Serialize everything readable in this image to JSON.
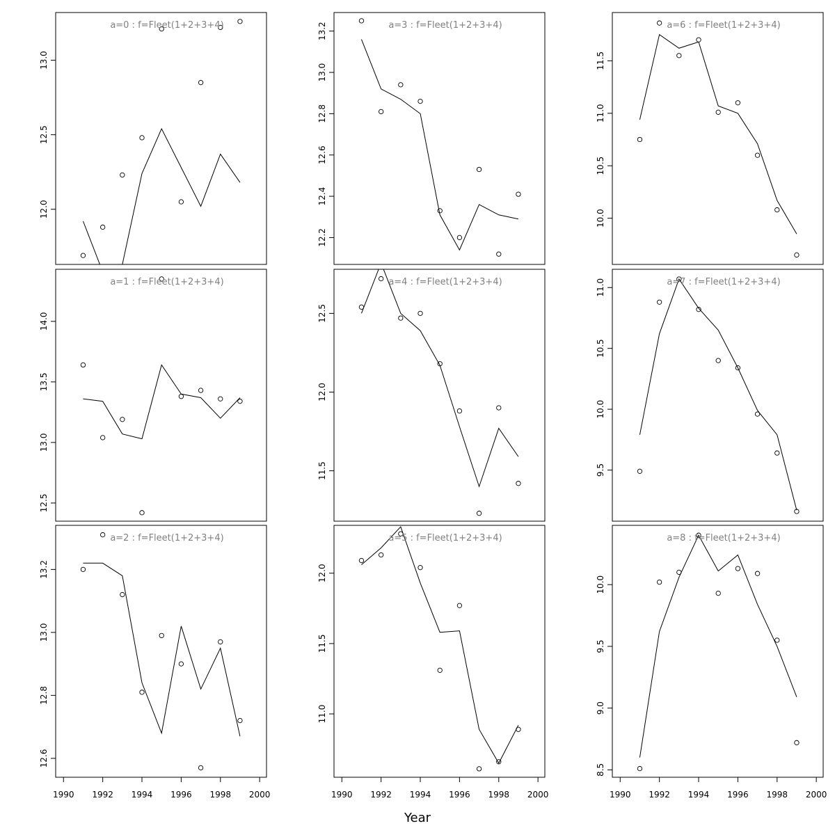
{
  "chart_data": {
    "type": "scatter",
    "xlabel": "Year",
    "xlim": [
      1989.6,
      2000.35
    ],
    "xticks": [
      1990,
      1992,
      1994,
      1996,
      1998,
      2000
    ],
    "x": [
      1991,
      1992,
      1993,
      1994,
      1995,
      1996,
      1997,
      1998,
      1999
    ],
    "point_style": "open-circle",
    "line_style": "solid black line",
    "title_color": "#808080",
    "panels": [
      {
        "title": "a=0 : f=Fleet(1+2+3+4)",
        "ylim": [
          11.63,
          13.32
        ],
        "yticks": [
          "12.0",
          "12.5",
          "13.0"
        ],
        "points": [
          11.69,
          11.88,
          12.23,
          12.48,
          13.21,
          12.05,
          12.85,
          13.22,
          13.26
        ],
        "line": [
          11.92,
          11.58,
          11.63,
          12.24,
          12.54,
          12.28,
          12.02,
          12.37,
          12.18
        ]
      },
      {
        "title": "a=3 : f=Fleet(1+2+3+4)",
        "ylim": [
          12.07,
          13.29
        ],
        "yticks": [
          "12.2",
          "12.4",
          "12.6",
          "12.8",
          "13.0",
          "13.2"
        ],
        "points": [
          13.25,
          12.81,
          12.94,
          12.86,
          12.33,
          12.2,
          12.53,
          12.12,
          12.41
        ],
        "line": [
          13.16,
          12.92,
          12.87,
          12.8,
          12.31,
          12.14,
          12.36,
          12.31,
          12.29
        ]
      },
      {
        "title": "a=6 : f=Fleet(1+2+3+4)",
        "ylim": [
          9.56,
          11.96
        ],
        "yticks": [
          "10.0",
          "10.5",
          "11.0",
          "11.5"
        ],
        "points": [
          10.75,
          11.86,
          11.55,
          11.7,
          11.01,
          11.1,
          10.6,
          10.08,
          9.65
        ],
        "line": [
          10.94,
          11.75,
          11.62,
          11.68,
          11.07,
          11.0,
          10.71,
          10.17,
          9.85
        ]
      },
      {
        "title": "a=1 : f=Fleet(1+2+3+4)",
        "ylim": [
          12.35,
          14.43
        ],
        "yticks": [
          "12.5",
          "13.0",
          "13.5",
          "14.0"
        ],
        "points": [
          13.64,
          13.04,
          13.19,
          12.42,
          14.35,
          13.38,
          13.43,
          13.36,
          13.34
        ],
        "line": [
          13.36,
          13.34,
          13.07,
          13.03,
          13.64,
          13.4,
          13.37,
          13.2,
          13.37
        ]
      },
      {
        "title": "a=4 : f=Fleet(1+2+3+4)",
        "ylim": [
          11.18,
          12.78
        ],
        "yticks": [
          "11.5",
          "12.0",
          "12.5"
        ],
        "points": [
          12.54,
          12.72,
          12.47,
          12.5,
          12.18,
          11.88,
          11.23,
          11.9,
          11.42
        ],
        "line": [
          12.5,
          12.82,
          12.5,
          12.39,
          12.17,
          11.78,
          11.4,
          11.77,
          11.59
        ]
      },
      {
        "title": "a=7 : f=Fleet(1+2+3+4)",
        "ylim": [
          9.08,
          11.15
        ],
        "yticks": [
          "9.5",
          "10.0",
          "10.5",
          "11.0"
        ],
        "points": [
          9.49,
          10.88,
          11.07,
          10.82,
          10.4,
          10.34,
          9.96,
          9.64,
          9.16
        ],
        "line": [
          9.79,
          10.62,
          11.07,
          10.83,
          10.65,
          10.34,
          9.99,
          9.79,
          9.17
        ]
      },
      {
        "title": "a=2 : f=Fleet(1+2+3+4)",
        "ylim": [
          12.54,
          13.34
        ],
        "yticks": [
          "12.6",
          "12.8",
          "13.0",
          "13.2"
        ],
        "points": [
          13.2,
          13.31,
          13.12,
          12.81,
          12.99,
          12.9,
          12.57,
          12.97,
          12.72
        ],
        "line": [
          13.22,
          13.22,
          13.18,
          12.84,
          12.68,
          13.02,
          12.82,
          12.95,
          12.67
        ]
      },
      {
        "title": "a=5 : f=Fleet(1+2+3+4)",
        "ylim": [
          10.55,
          12.34
        ],
        "yticks": [
          "11.0",
          "11.5",
          "12.0"
        ],
        "points": [
          12.09,
          12.13,
          12.28,
          12.04,
          11.31,
          11.77,
          10.61,
          10.66,
          10.89
        ],
        "line": [
          12.06,
          12.18,
          12.33,
          11.93,
          11.58,
          11.59,
          10.89,
          10.65,
          10.92
        ]
      },
      {
        "title": "a=8 : f=Fleet(1+2+3+4)",
        "ylim": [
          8.44,
          10.48
        ],
        "yticks": [
          "8.5",
          "9.0",
          "9.5",
          "10.0"
        ],
        "points": [
          8.51,
          10.02,
          10.1,
          10.4,
          9.93,
          10.13,
          10.09,
          9.55,
          8.72
        ],
        "line": [
          8.6,
          9.62,
          10.06,
          10.4,
          10.11,
          10.24,
          9.84,
          9.5,
          9.09
        ]
      }
    ]
  }
}
